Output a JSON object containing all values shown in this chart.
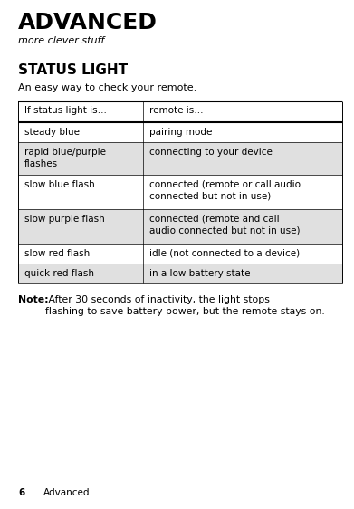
{
  "title": "ADVANCED",
  "subtitle": "more clever stuff",
  "section_title": "STATUS LIGHT",
  "section_desc": "An easy way to check your remote.",
  "table_headers": [
    "If status light is…",
    "remote is…"
  ],
  "table_rows": [
    [
      "steady blue",
      "pairing mode"
    ],
    [
      "rapid blue/purple\nflashes",
      "connecting to your device"
    ],
    [
      "slow blue flash",
      "connected (remote or call audio\nconnected but not in use)"
    ],
    [
      "slow purple flash",
      "connected (remote and call\naudio connected but not in use)"
    ],
    [
      "slow red flash",
      "idle (not connected to a device)"
    ],
    [
      "quick red flash",
      "in a low battery state"
    ]
  ],
  "note_bold": "Note:",
  "note_rest": " After 30 seconds of inactivity, the light stops\nflashing to save battery power, but the remote stays on.",
  "footer_number": "6",
  "footer_text": "Advanced",
  "col_split": 0.385,
  "background_color": "#ffffff",
  "table_border_color": "#000000",
  "row_alt_color": "#e0e0e0",
  "row_normal_color": "#ffffff",
  "header_color": "#ffffff",
  "title_fontsize": 18,
  "subtitle_fontsize": 8,
  "section_title_fontsize": 11,
  "section_desc_fontsize": 8,
  "table_fontsize": 7.5,
  "note_fontsize": 7.8,
  "footer_fontsize": 7.5
}
